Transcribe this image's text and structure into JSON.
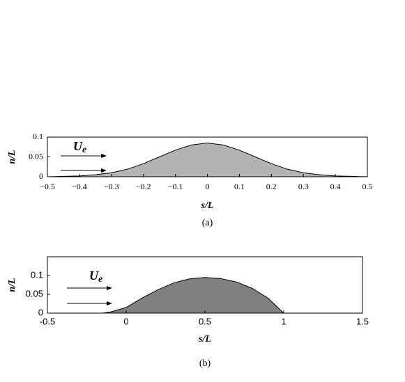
{
  "chart_data": [
    {
      "type": "area",
      "xlabel": "s/L",
      "ylabel": "n/L",
      "caption": "(a)",
      "annotation": {
        "text": "U",
        "subscript": "e"
      },
      "x": [
        -0.5,
        -0.45,
        -0.4,
        -0.35,
        -0.3,
        -0.25,
        -0.2,
        -0.15,
        -0.1,
        -0.05,
        0,
        0.05,
        0.1,
        0.15,
        0.2,
        0.25,
        0.3,
        0.35,
        0.4,
        0.45,
        0.5
      ],
      "values": [
        0,
        0.001,
        0.002,
        0.005,
        0.01,
        0.019,
        0.033,
        0.05,
        0.067,
        0.08,
        0.085,
        0.08,
        0.067,
        0.05,
        0.033,
        0.019,
        0.01,
        0.005,
        0.002,
        0.001,
        0
      ],
      "color": "#b3b3b3",
      "xlim": [
        -0.5,
        0.5
      ],
      "xticks": [
        {
          "value": -0.5,
          "label": "−0.5"
        },
        {
          "value": -0.4,
          "label": "−0.4"
        },
        {
          "value": -0.3,
          "label": "−0.3"
        },
        {
          "value": -0.2,
          "label": "−0.2"
        },
        {
          "value": -0.1,
          "label": "−0.1"
        },
        0,
        0.1,
        0.2,
        0.3,
        0.4,
        0.5
      ],
      "ylim": [
        0,
        0.1
      ],
      "yticks": [
        0,
        0.05,
        0.1
      ]
    },
    {
      "type": "area",
      "xlabel": "s/L",
      "ylabel": "n/L",
      "caption": "(b)",
      "annotation": {
        "text": "U",
        "subscript": "e"
      },
      "x": [
        -0.5,
        -0.15,
        -0.1,
        0,
        0.1,
        0.2,
        0.3,
        0.4,
        0.5,
        0.6,
        0.7,
        0.8,
        0.9,
        1,
        1.5
      ],
      "values": [
        0,
        0,
        0.003,
        0.015,
        0.04,
        0.062,
        0.08,
        0.091,
        0.095,
        0.092,
        0.083,
        0.066,
        0.04,
        0,
        0
      ],
      "color": "#808080",
      "xlim": [
        -0.5,
        1.5
      ],
      "xticks": [
        -0.5,
        0,
        0.5,
        1,
        1.5
      ],
      "ylim": [
        0,
        0.15
      ],
      "yticks": [
        0,
        0.05,
        0.1
      ]
    }
  ]
}
